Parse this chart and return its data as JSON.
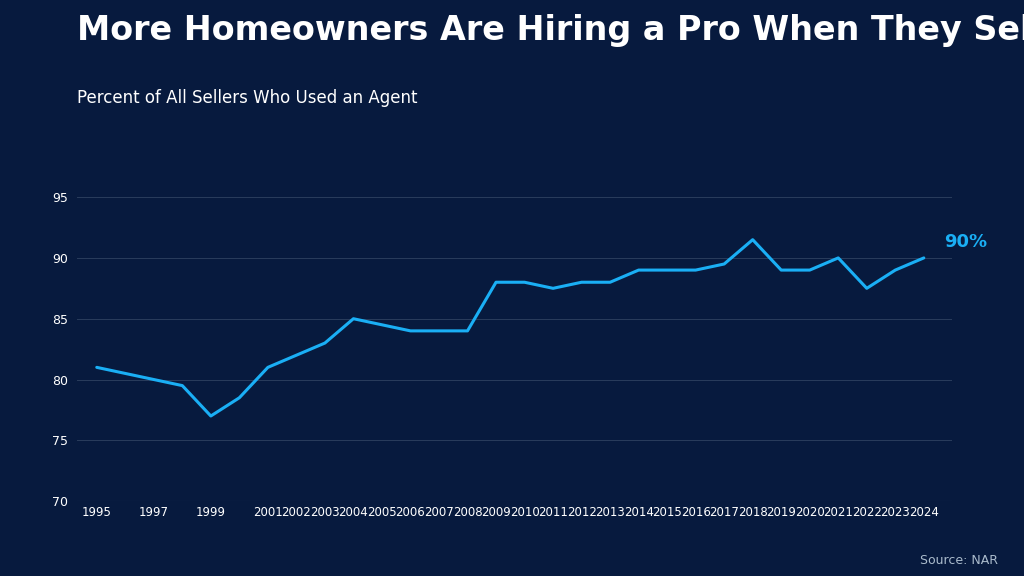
{
  "title": "More Homeowners Are Hiring a Pro When They Sell",
  "subtitle": "Percent of All Sellers Who Used an Agent",
  "source": "Source: NAR",
  "annotation": "90%",
  "background_color": "#071a3e",
  "line_color": "#1aaff5",
  "grid_color": "#2a3d5c",
  "text_color": "#ffffff",
  "annotation_color": "#1aaff5",
  "years": [
    1995,
    1996,
    1997,
    1998,
    1999,
    2000,
    2001,
    2002,
    2003,
    2004,
    2005,
    2006,
    2007,
    2008,
    2009,
    2010,
    2011,
    2012,
    2013,
    2014,
    2015,
    2016,
    2017,
    2018,
    2019,
    2020,
    2021,
    2022,
    2023,
    2024
  ],
  "values": [
    81.0,
    80.5,
    80.0,
    79.5,
    77.0,
    78.5,
    81.0,
    82.0,
    83.0,
    85.0,
    84.5,
    84.0,
    84.0,
    84.0,
    88.0,
    88.0,
    87.5,
    88.0,
    88.0,
    89.0,
    89.0,
    89.0,
    89.5,
    91.5,
    89.0,
    89.0,
    90.0,
    87.5,
    89.0,
    90.0
  ],
  "xtick_labels": [
    "1995",
    "",
    "1997",
    "",
    "1999",
    "",
    "2001",
    "2002",
    "2003",
    "2004",
    "2005",
    "2006",
    "2007",
    "2008",
    "2009",
    "2010",
    "2011",
    "2012",
    "2013",
    "2014",
    "2015",
    "2016",
    "2017",
    "2018",
    "2019",
    "2020",
    "2021",
    "2022",
    "2023",
    "2024"
  ],
  "ylim": [
    70,
    97
  ],
  "yticks": [
    70,
    75,
    80,
    85,
    90,
    95
  ],
  "xlabel_fontsize": 8.5,
  "ylabel_fontsize": 9,
  "title_fontsize": 24,
  "subtitle_fontsize": 12,
  "line_width": 2.2
}
